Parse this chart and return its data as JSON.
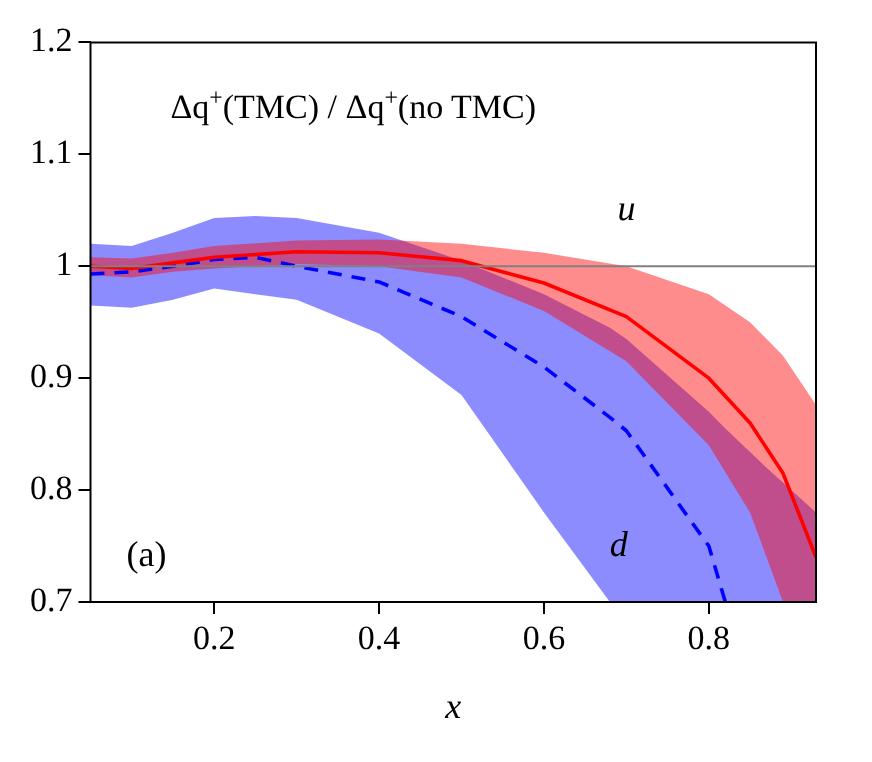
{
  "chart_data": {
    "type": "line",
    "title": "Δq$^{+}$(TMC) / Δq$^{+}$(no TMC)",
    "xlabel": "x",
    "xlim": [
      0.05,
      0.93
    ],
    "xticks": [
      0.2,
      0.4,
      0.6,
      0.8
    ],
    "ylim": [
      0.7,
      1.2
    ],
    "yticks": [
      0.7,
      0.8,
      0.9,
      1,
      1.1,
      1.2
    ],
    "grid": false,
    "legend": false,
    "marker": "none",
    "series": [
      {
        "name": "u",
        "color": "#ff0000",
        "line_style": "solid",
        "x": [
          0.05,
          0.1,
          0.15,
          0.2,
          0.3,
          0.4,
          0.5,
          0.6,
          0.7,
          0.8,
          0.85,
          0.89,
          0.93
        ],
        "values": [
          1.0,
          0.998,
          1.003,
          1.008,
          1.013,
          1.012,
          1.005,
          0.985,
          0.955,
          0.9,
          0.86,
          0.815,
          0.74
        ],
        "upper": [
          1.008,
          1.007,
          1.012,
          1.018,
          1.023,
          1.024,
          1.02,
          1.012,
          1.0,
          0.975,
          0.95,
          0.92,
          0.876
        ],
        "lower": [
          0.992,
          0.99,
          0.995,
          0.998,
          1.002,
          1.0,
          0.99,
          0.96,
          0.915,
          0.84,
          0.78,
          0.7,
          0.7
        ]
      },
      {
        "name": "d",
        "color": "#0000ff",
        "line_style": "dashed",
        "x": [
          0.05,
          0.1,
          0.15,
          0.2,
          0.25,
          0.3,
          0.4,
          0.5,
          0.6,
          0.68,
          0.7,
          0.8,
          0.82,
          0.87,
          0.93
        ],
        "values": [
          0.993,
          0.995,
          1.0,
          1.006,
          1.008,
          1.0,
          0.986,
          0.955,
          0.91,
          0.865,
          0.853,
          0.75,
          0.7,
          null,
          null
        ],
        "upper": [
          1.02,
          1.018,
          1.03,
          1.043,
          1.045,
          1.043,
          1.03,
          1.005,
          0.975,
          0.945,
          0.935,
          0.87,
          0.855,
          0.82,
          0.78
        ],
        "lower": [
          0.965,
          0.963,
          0.97,
          0.98,
          0.975,
          0.97,
          0.94,
          0.885,
          0.78,
          0.7,
          0.7,
          0.7,
          0.7,
          0.7,
          0.7
        ]
      }
    ],
    "ref_lines": [
      {
        "axis": "y",
        "value": 1,
        "color": "#808080"
      }
    ],
    "annotations": [
      "(a)"
    ]
  }
}
